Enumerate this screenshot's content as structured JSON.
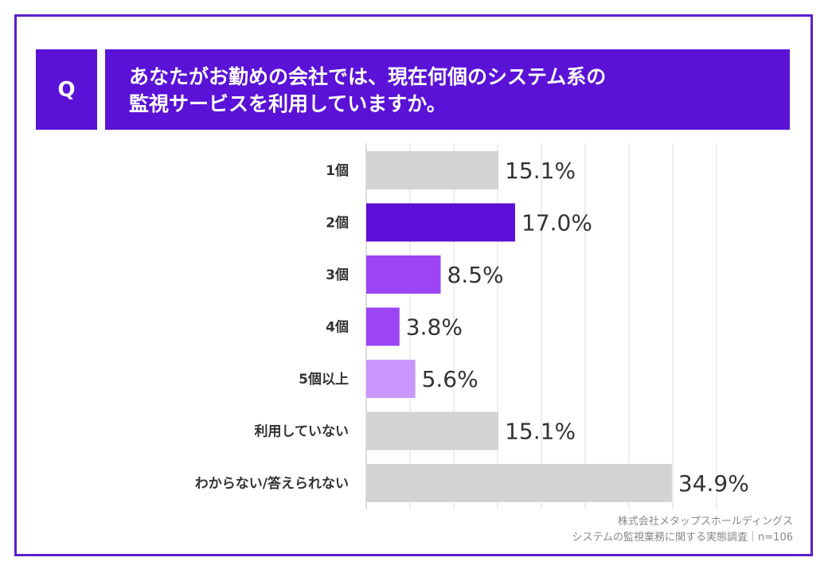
{
  "question": {
    "badge": "Q",
    "line1": "あなたがお勤めの会社では、現在何個のシステム系の",
    "line2": "監視サービスを利用していますか。"
  },
  "source": {
    "line1": "株式会社メタップスホールディングス",
    "line2": "システムの監視業務に関する実態調査｜n=106"
  },
  "colors": {
    "accent": "#5a12d6",
    "gray": "#d3d3d3"
  },
  "chart_data": {
    "type": "bar",
    "orientation": "horizontal",
    "categories": [
      "1個",
      "2個",
      "3個",
      "4個",
      "5個以上",
      "利用していない",
      "わからない/答えられない"
    ],
    "values": [
      15.1,
      17.0,
      8.5,
      3.8,
      5.6,
      15.1,
      34.9
    ],
    "value_labels": [
      "15.1%",
      "17.0%",
      "8.5%",
      "3.8%",
      "5.6%",
      "15.1%",
      "34.9%"
    ],
    "bar_colors": [
      "#d3d3d3",
      "#5c0fd6",
      "#9b45f5",
      "#9b45f5",
      "#c996fb",
      "#d3d3d3",
      "#d3d3d3"
    ],
    "xlim": [
      0,
      40
    ],
    "grid": true,
    "legend": "none"
  }
}
